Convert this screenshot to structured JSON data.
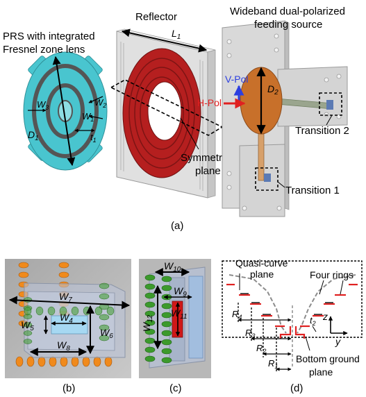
{
  "panel_a": {
    "prs_title_line1": "PRS with integrated",
    "prs_title_line2": "Fresnel zone lens",
    "reflector": "Reflector",
    "feed_line1": "Wideband dual-polarized",
    "feed_line2": "feeding source",
    "symmetric_line1": "Symmetric",
    "symmetric_line2": "plane",
    "transition1": "Transition 1",
    "transition2": "Transition 2",
    "vpol": "V-Pol",
    "hpol": "H-Pol",
    "L1": "L",
    "L1_sub": "1",
    "D1": "D",
    "D1_sub": "1",
    "D2": "D",
    "D2_sub": "2",
    "W1": "W",
    "W1_sub": "1",
    "W2": "W",
    "W2_sub": "2",
    "W3": "W",
    "W3_sub": "3",
    "t1": "t",
    "t1_sub": "1",
    "caption": "(a)"
  },
  "panel_b": {
    "W4": "W",
    "W4_sub": "4",
    "W5": "W",
    "W5_sub": "5",
    "W6": "W",
    "W6_sub": "6",
    "W7": "W",
    "W7_sub": "7",
    "W8": "W",
    "W8_sub": "8",
    "caption": "(b)"
  },
  "panel_c": {
    "W9": "W",
    "W9_sub": "9",
    "W10": "W",
    "W10_sub": "10",
    "W11": "W",
    "W11_sub": "11",
    "W12": "W",
    "W12_sub": "12",
    "caption": "(c)"
  },
  "panel_d": {
    "quasi_line1": "Quasi-curve",
    "quasi_line2": "plane",
    "four_rings": "Four rings",
    "bottom_line1": "Bottom ground",
    "bottom_line2": "plane",
    "R1": "R",
    "R1_sub": "1",
    "R2": "R",
    "R2_sub": "2",
    "R3": "R",
    "R3_sub": "3",
    "R4": "R",
    "R4_sub": "4",
    "t2": "t",
    "t2_sub": "2",
    "axis_z": "z",
    "axis_y": "y",
    "caption": "(d)"
  },
  "colors": {
    "prs_cyan": "#49c5cf",
    "reflector_red": "#b51f1f",
    "metal_gray": "#d9d9d9",
    "patch_orange": "#c8702a",
    "via_orange": "#f08a1c",
    "via_green": "#3c9a2c",
    "arrow_blue": "#2c3fe0",
    "arrow_red": "#e02020"
  }
}
